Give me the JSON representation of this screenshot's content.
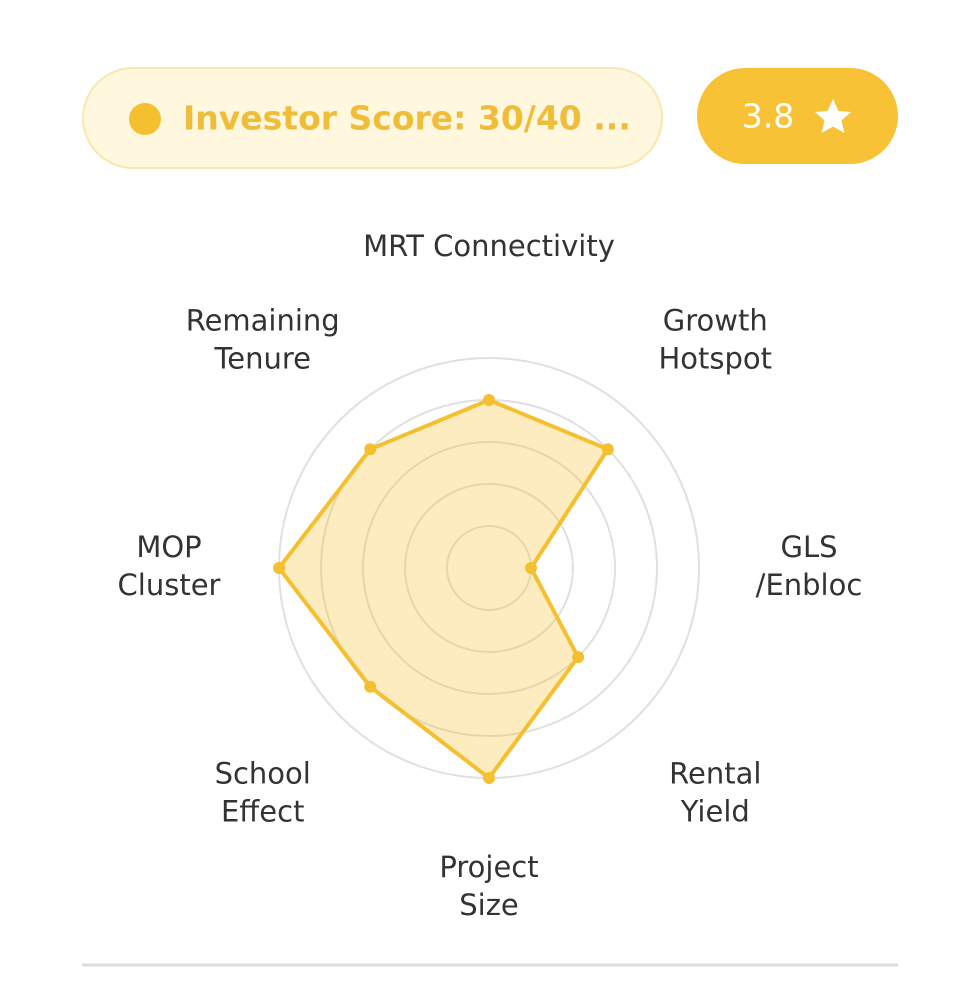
{
  "badge": {
    "text": "Investor Score: 30/40 ...",
    "rating": "3.8"
  },
  "chart_data": {
    "type": "radar",
    "categories": [
      [
        "MRT Connectivity"
      ],
      [
        "Growth",
        "Hotspot"
      ],
      [
        "GLS",
        "/Enbloc"
      ],
      [
        "Rental",
        "Yield"
      ],
      [
        "Project",
        "Size"
      ],
      [
        "School",
        "Effect"
      ],
      [
        "MOP",
        "Cluster"
      ],
      [
        "Remaining",
        "Tenure"
      ]
    ],
    "values": [
      4,
      4,
      1,
      3,
      5,
      4,
      5,
      4
    ],
    "color": "#f5c02f",
    "rlim": [
      0,
      5
    ],
    "rticks": [
      1,
      2,
      3,
      4,
      5
    ],
    "grid": true
  }
}
